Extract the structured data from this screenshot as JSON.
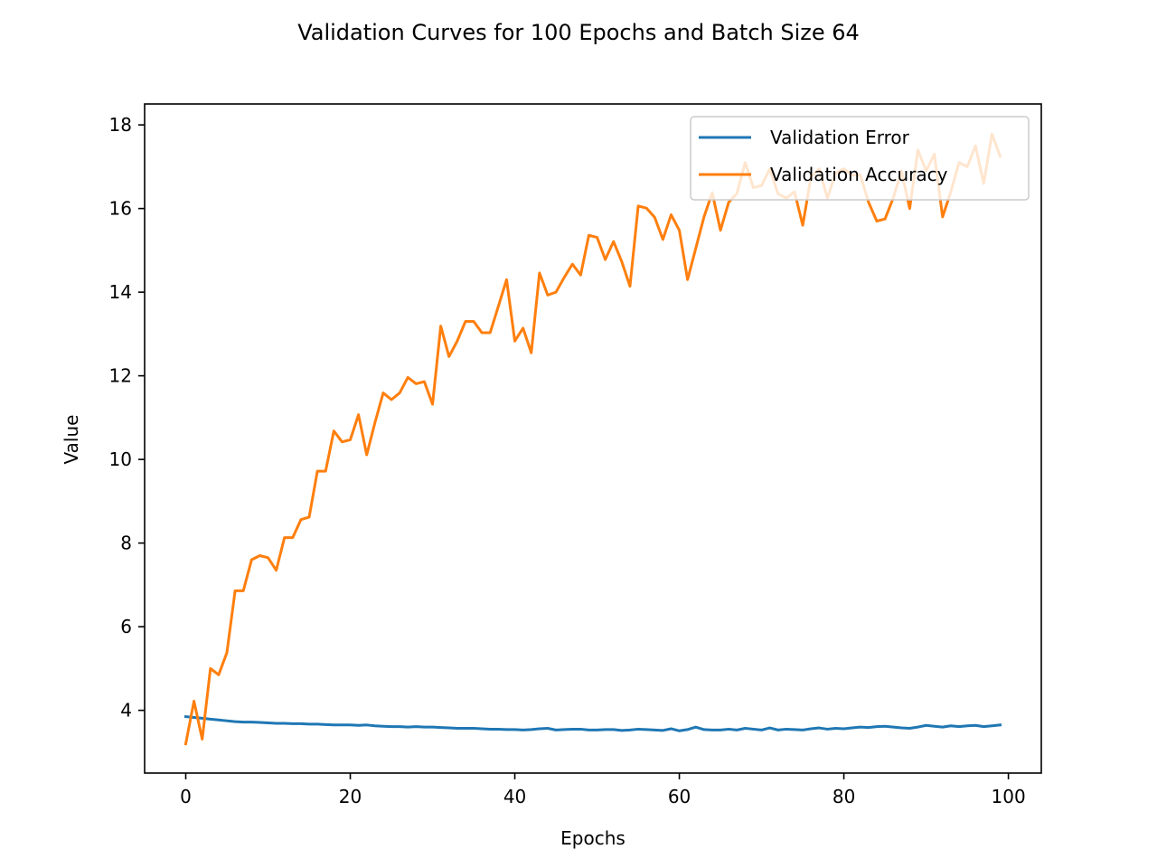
{
  "chart_data": {
    "type": "line",
    "title": "Validation Curves for 100 Epochs and Batch Size 64",
    "xlabel": "Epochs",
    "ylabel": "Value",
    "xlim": [
      -5,
      104
    ],
    "ylim": [
      2.5,
      18.5
    ],
    "xticks": [
      0,
      20,
      40,
      60,
      80,
      100
    ],
    "yticks": [
      4,
      6,
      8,
      10,
      12,
      14,
      16,
      18
    ],
    "grid": false,
    "legend_position": "top-right",
    "series": [
      {
        "name": "Validation Error",
        "color": "#1f77b4",
        "values": [
          3.85,
          3.83,
          3.81,
          3.79,
          3.77,
          3.75,
          3.73,
          3.72,
          3.72,
          3.71,
          3.7,
          3.69,
          3.69,
          3.68,
          3.68,
          3.67,
          3.67,
          3.66,
          3.65,
          3.65,
          3.65,
          3.64,
          3.65,
          3.63,
          3.62,
          3.61,
          3.61,
          3.6,
          3.61,
          3.6,
          3.6,
          3.59,
          3.58,
          3.57,
          3.57,
          3.57,
          3.56,
          3.55,
          3.55,
          3.54,
          3.54,
          3.53,
          3.54,
          3.56,
          3.57,
          3.53,
          3.54,
          3.55,
          3.55,
          3.53,
          3.53,
          3.54,
          3.54,
          3.52,
          3.53,
          3.55,
          3.54,
          3.53,
          3.52,
          3.56,
          3.51,
          3.54,
          3.6,
          3.54,
          3.53,
          3.53,
          3.55,
          3.53,
          3.57,
          3.55,
          3.53,
          3.58,
          3.53,
          3.55,
          3.54,
          3.53,
          3.56,
          3.58,
          3.55,
          3.57,
          3.56,
          3.58,
          3.6,
          3.59,
          3.61,
          3.62,
          3.6,
          3.58,
          3.57,
          3.6,
          3.64,
          3.62,
          3.6,
          3.63,
          3.61,
          3.63,
          3.64,
          3.61,
          3.63,
          3.65
        ]
      },
      {
        "name": "Validation Accuracy",
        "color": "#ff7f0e",
        "values": [
          3.2,
          4.22,
          3.31,
          5.0,
          4.85,
          5.38,
          6.86,
          6.86,
          7.6,
          7.7,
          7.65,
          7.35,
          8.13,
          8.13,
          8.56,
          8.62,
          9.72,
          9.72,
          10.68,
          10.42,
          10.47,
          11.07,
          10.11,
          10.88,
          11.59,
          11.43,
          11.59,
          11.96,
          11.81,
          11.86,
          11.32,
          13.19,
          12.46,
          12.83,
          13.3,
          13.3,
          13.03,
          13.03,
          13.66,
          14.3,
          12.83,
          13.14,
          12.55,
          14.46,
          13.93,
          14.0,
          14.35,
          14.67,
          14.41,
          15.36,
          15.31,
          14.78,
          15.21,
          14.73,
          14.14,
          16.06,
          16.01,
          15.79,
          15.26,
          15.85,
          15.48,
          14.3,
          15.05,
          15.8,
          16.38,
          15.48,
          16.15,
          16.36,
          17.1,
          16.5,
          16.55,
          16.95,
          16.35,
          16.25,
          16.4,
          15.6,
          16.75,
          16.95,
          16.25,
          16.85,
          16.95,
          16.8,
          16.8,
          16.15,
          15.7,
          15.75,
          16.25,
          16.9,
          16.0,
          17.4,
          16.9,
          17.3,
          15.8,
          16.4,
          17.1,
          17.0,
          17.5,
          16.6,
          17.78,
          17.25
        ]
      }
    ]
  }
}
